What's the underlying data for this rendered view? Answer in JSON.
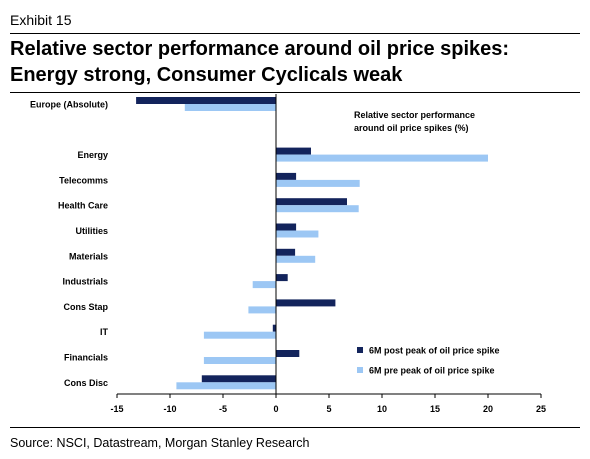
{
  "header": {
    "exhibit": "Exhibit 15",
    "title_line1": "Relative sector performance around oil price spikes:",
    "title_line2": "Energy strong, Consumer Cyclicals weak"
  },
  "footer": {
    "source": "Source: NSCI, Datastream, Morgan Stanley Research"
  },
  "chart_data": {
    "type": "bar",
    "orientation": "horizontal",
    "annotation_line1": "Relative sector performance",
    "annotation_line2": "around oil price spikes (%)",
    "categories": [
      "Europe (Absolute)",
      "Energy",
      "Telecomms",
      "Health Care",
      "Utilities",
      "Materials",
      "Industrials",
      "Cons Stap",
      "IT",
      "Financials",
      "Cons Disc"
    ],
    "series": [
      {
        "name": "6M post peak of oil price spike",
        "color": "#13245c",
        "values": [
          -13.2,
          3.3,
          1.9,
          6.7,
          1.9,
          1.8,
          1.1,
          5.6,
          -0.3,
          2.2,
          -7.0
        ]
      },
      {
        "name": "6M pre peak of oil price spike",
        "color": "#9cc7f4",
        "values": [
          -8.6,
          20.0,
          7.9,
          7.8,
          4.0,
          3.7,
          -2.2,
          -2.6,
          -6.8,
          -6.8,
          -9.4
        ]
      }
    ],
    "xlim": [
      -15,
      25
    ],
    "xticks": [
      -15,
      -10,
      -5,
      0,
      5,
      10,
      15,
      20,
      25
    ],
    "legend_position": "bottom-right",
    "grid": false
  }
}
